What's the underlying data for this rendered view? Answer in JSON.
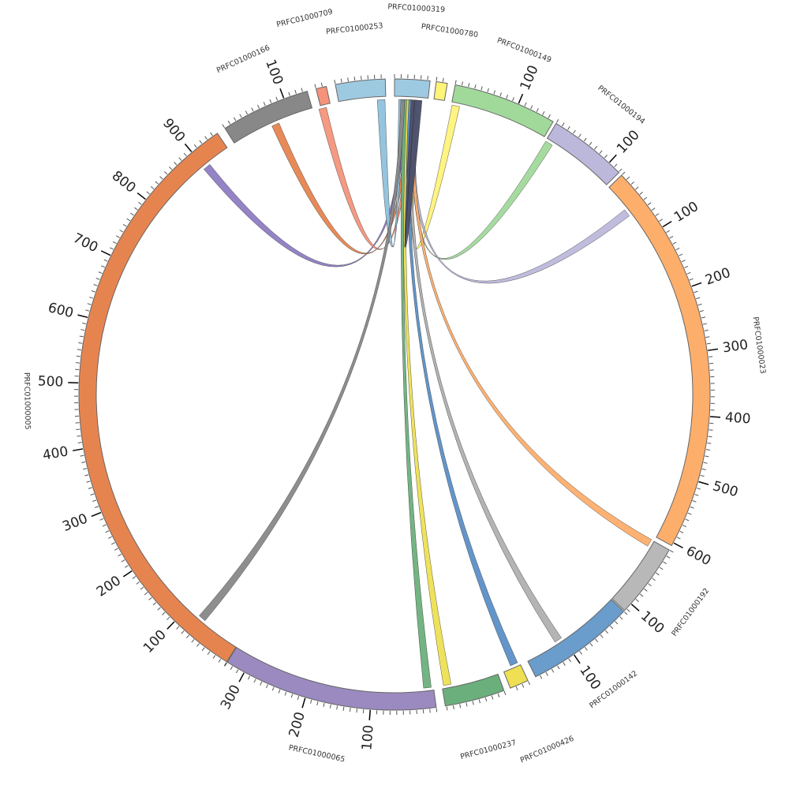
{
  "chart_data": {
    "type": "chord",
    "title": "",
    "groups": [
      {
        "name": "PRFC01000005",
        "color": "#e6844f",
        "length": 948
      },
      {
        "name": "PRFC01000166",
        "color": "#888888",
        "length": 137
      },
      {
        "name": "PRFC01000709",
        "color": "#f4937a",
        "length": 16
      },
      {
        "name": "PRFC01000253",
        "color": "#9ecae1",
        "length": 76
      },
      {
        "name": "PRFC01000319",
        "color": "#9ecae1",
        "length": 54
      },
      {
        "name": "PRFC01000780",
        "color": "#fff37a",
        "length": 17
      },
      {
        "name": "PRFC01000149",
        "color": "#a1d99b",
        "length": 159
      },
      {
        "name": "PRFC01000194",
        "color": "#bcb8db",
        "length": 121
      },
      {
        "name": "PRFC01000023",
        "color": "#fdae6b",
        "length": 605
      },
      {
        "name": "PRFC01000192",
        "color": "#b8b8b8",
        "length": 114
      },
      {
        "name": "PRFC01000142",
        "color": "#6a9ccc",
        "length": 167
      },
      {
        "name": "PRFC01000426",
        "color": "#eee052",
        "length": 29
      },
      {
        "name": "PRFC01000237",
        "color": "#6bb07c",
        "length": 92
      },
      {
        "name": "PRFC01000065",
        "color": "#9b8ac0",
        "length": 330
      }
    ],
    "chords": [
      {
        "from": "PRFC01000319",
        "to": "PRFC01000005",
        "color": "#8e7cc3"
      },
      {
        "from": "PRFC01000319",
        "to": "PRFC01000166",
        "color": "#e6844f"
      },
      {
        "from": "PRFC01000319",
        "to": "PRFC01000709",
        "color": "#f4937a"
      },
      {
        "from": "PRFC01000319",
        "to": "PRFC01000253",
        "color": "#8fc1dc"
      },
      {
        "from": "PRFC01000319",
        "to": "PRFC01000780",
        "color": "#fff37a"
      },
      {
        "from": "PRFC01000319",
        "to": "PRFC01000149",
        "color": "#a1d99b"
      },
      {
        "from": "PRFC01000319",
        "to": "PRFC01000194",
        "color": "#bcb8db"
      },
      {
        "from": "PRFC01000319",
        "to": "PRFC01000023",
        "color": "#fdae6b"
      },
      {
        "from": "PRFC01000319",
        "to": "PRFC01000192",
        "color": "#b0b0b0"
      },
      {
        "from": "PRFC01000319",
        "to": "PRFC01000142",
        "color": "#5b8fc7"
      },
      {
        "from": "PRFC01000319",
        "to": "PRFC01000426",
        "color": "#eee052"
      },
      {
        "from": "PRFC01000319",
        "to": "PRFC01000237",
        "color": "#6bb07c"
      },
      {
        "from": "PRFC01000319",
        "to": "PRFC01000005",
        "color": "#888888"
      },
      {
        "from": "PRFC01000319",
        "to": "PRFC01000319",
        "color": "#4a4e6e"
      }
    ],
    "tick_step": 10,
    "major_tick_step": 100
  }
}
